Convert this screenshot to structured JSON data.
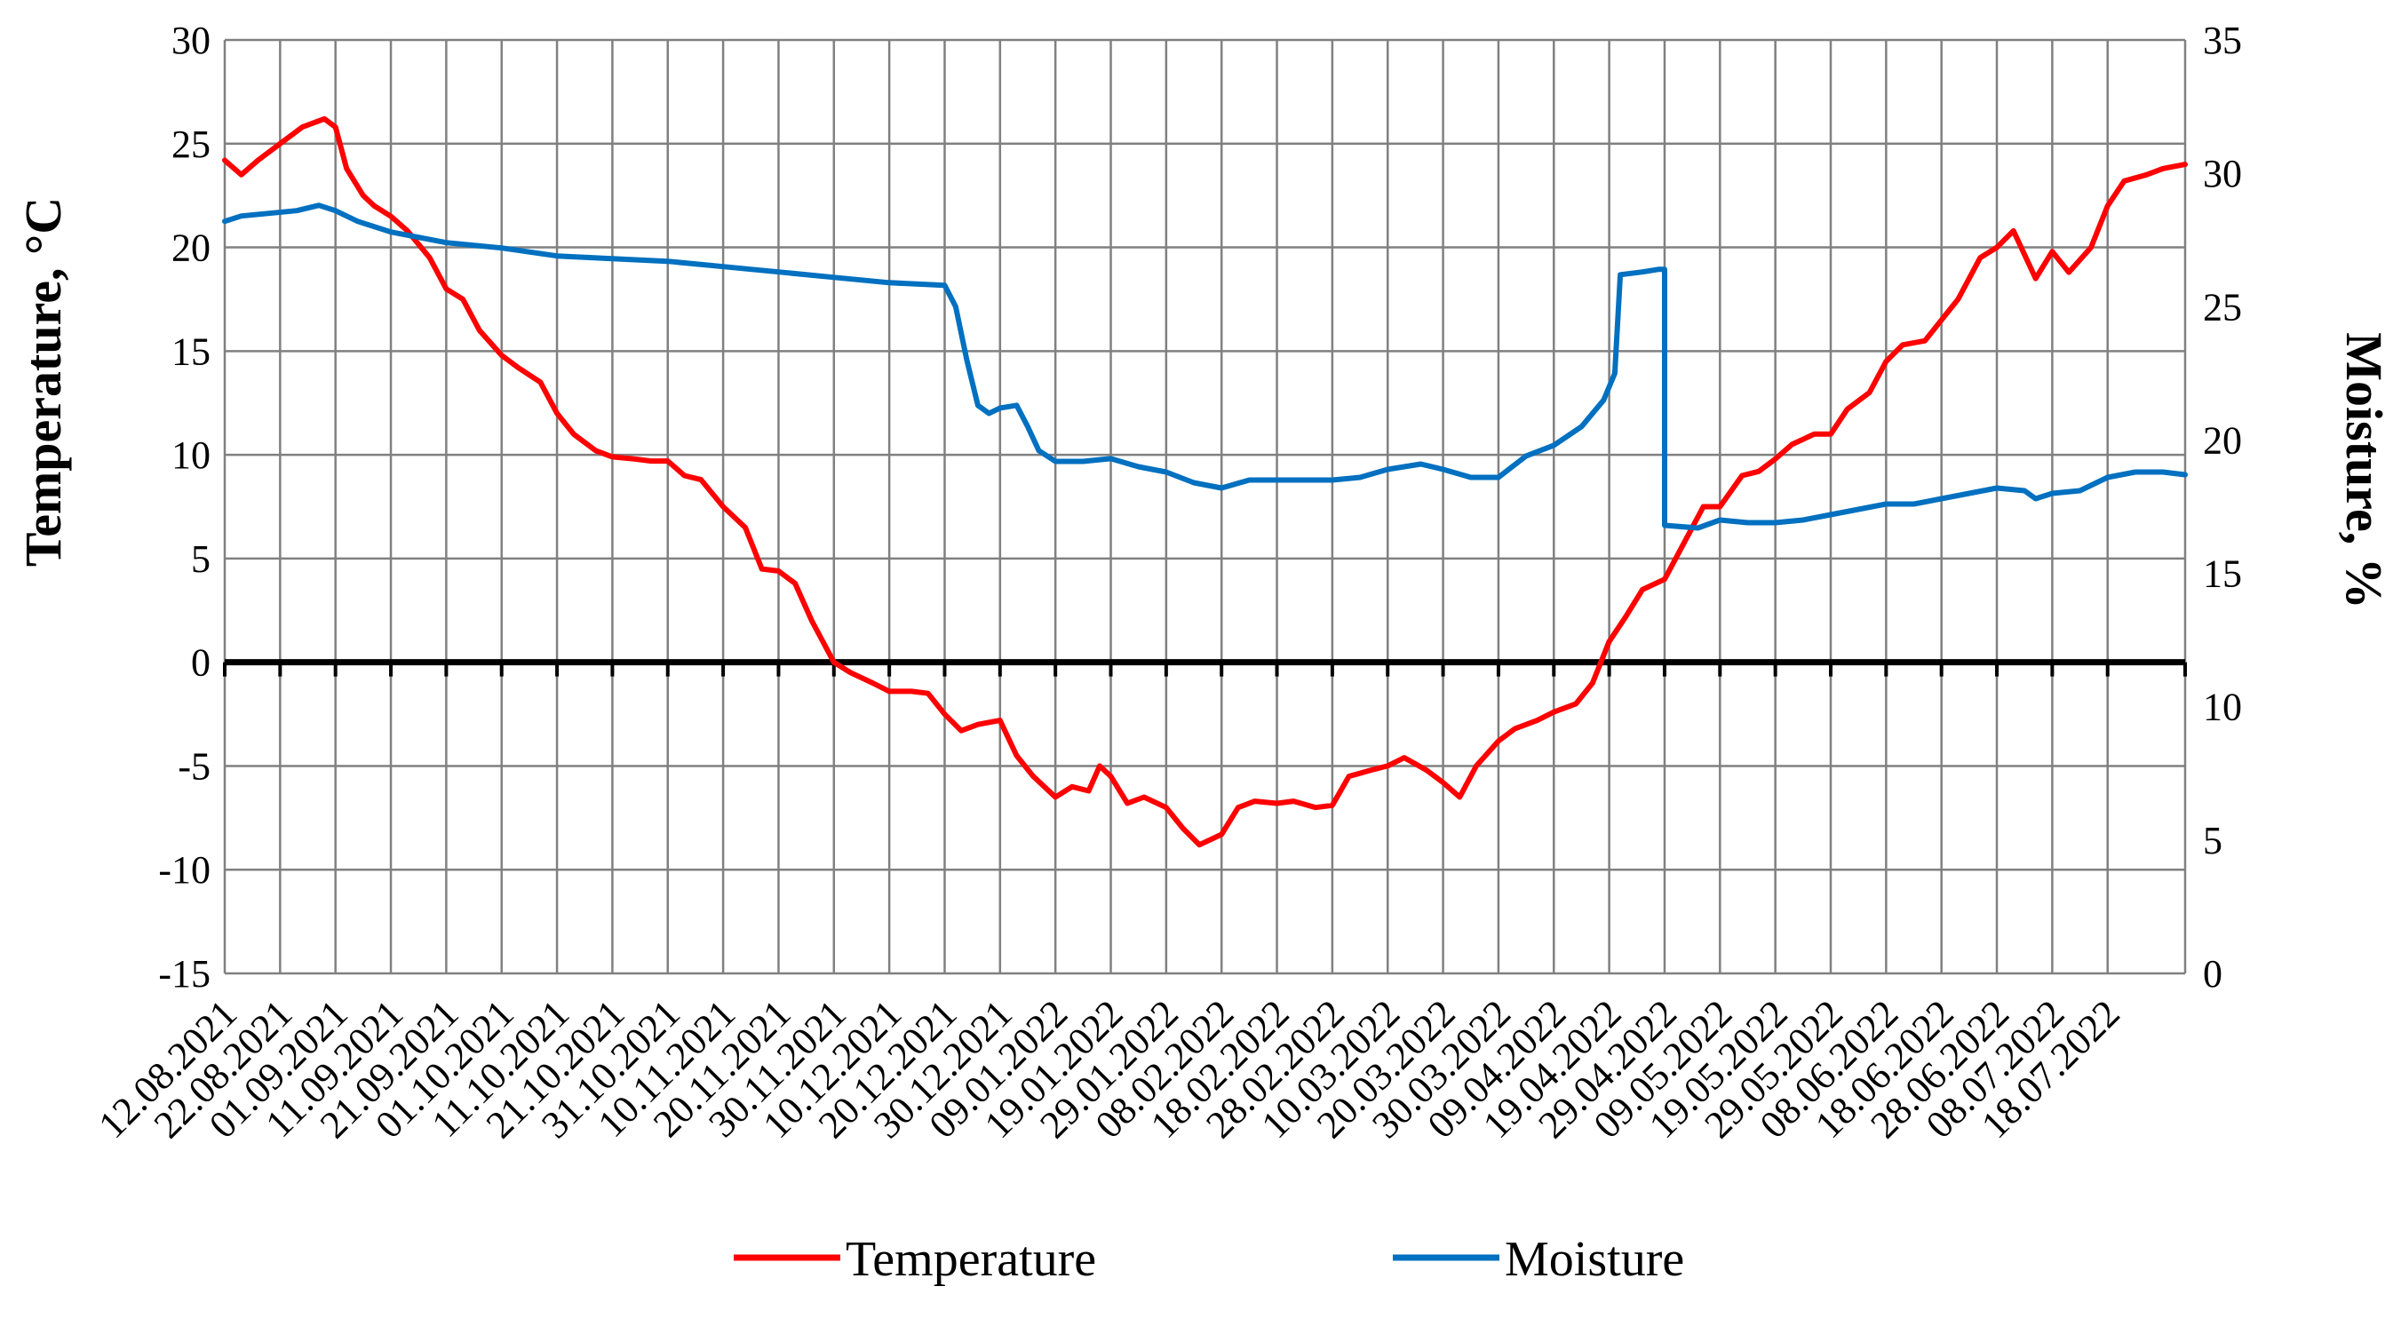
{
  "chart_data": {
    "type": "line",
    "title": "",
    "xlabel": "",
    "ylabel_left": "Temperature, °C",
    "ylabel_right": "Moisture, %",
    "ylim_left": [
      -15,
      30
    ],
    "ylim_right": [
      0,
      35
    ],
    "yticks_left": [
      30,
      25,
      20,
      15,
      10,
      5,
      0,
      -5,
      -10,
      -15
    ],
    "yticks_right": [
      35,
      30,
      25,
      20,
      15,
      10,
      5,
      0
    ],
    "x_start": "12.08.2021",
    "x_end": "01.08.2022",
    "x_tick_labels": [
      "12.08.2021",
      "22.08.2021",
      "01.09.2021",
      "11.09.2021",
      "21.09.2021",
      "01.10.2021",
      "11.10.2021",
      "21.10.2021",
      "31.10.2021",
      "10.11.2021",
      "20.11.2021",
      "30.11.2021",
      "10.12.2021",
      "20.12.2021",
      "30.12.2021",
      "09.01.2022",
      "19.01.2022",
      "29.01.2022",
      "08.02.2022",
      "18.02.2022",
      "28.02.2022",
      "10.03.2022",
      "20.03.2022",
      "30.03.2022",
      "09.04.2022",
      "19.04.2022",
      "29.04.2022",
      "09.05.2022",
      "19.05.2022",
      "29.05.2022",
      "08.06.2022",
      "18.06.2022",
      "28.06.2022",
      "08.07.2022",
      "18.07.2022"
    ],
    "grid": true,
    "legend_position": "bottom",
    "series": [
      {
        "name": "Temperature",
        "axis": "left",
        "color": "#ff0000",
        "points": [
          [
            "12.08.2021",
            24.2
          ],
          [
            "15.08.2021",
            23.5
          ],
          [
            "18.08.2021",
            24.2
          ],
          [
            "22.08.2021",
            25.0
          ],
          [
            "26.08.2021",
            25.8
          ],
          [
            "30.08.2021",
            26.2
          ],
          [
            "01.09.2021",
            25.8
          ],
          [
            "03.09.2021",
            23.8
          ],
          [
            "06.09.2021",
            22.5
          ],
          [
            "08.09.2021",
            22.0
          ],
          [
            "11.09.2021",
            21.5
          ],
          [
            "14.09.2021",
            20.8
          ],
          [
            "18.09.2021",
            19.5
          ],
          [
            "21.09.2021",
            18.0
          ],
          [
            "24.09.2021",
            17.5
          ],
          [
            "27.09.2021",
            16.0
          ],
          [
            "01.10.2021",
            14.8
          ],
          [
            "04.10.2021",
            14.2
          ],
          [
            "08.10.2021",
            13.5
          ],
          [
            "11.10.2021",
            12.0
          ],
          [
            "14.10.2021",
            11.0
          ],
          [
            "18.10.2021",
            10.2
          ],
          [
            "21.10.2021",
            9.9
          ],
          [
            "25.10.2021",
            9.8
          ],
          [
            "28.10.2021",
            9.7
          ],
          [
            "31.10.2021",
            9.7
          ],
          [
            "03.11.2021",
            9.0
          ],
          [
            "06.11.2021",
            8.8
          ],
          [
            "10.11.2021",
            7.5
          ],
          [
            "14.11.2021",
            6.5
          ],
          [
            "17.11.2021",
            4.5
          ],
          [
            "20.11.2021",
            4.4
          ],
          [
            "23.11.2021",
            3.8
          ],
          [
            "26.11.2021",
            2.0
          ],
          [
            "30.11.2021",
            0.0
          ],
          [
            "03.12.2021",
            -0.5
          ],
          [
            "07.12.2021",
            -1.0
          ],
          [
            "10.12.2021",
            -1.4
          ],
          [
            "14.12.2021",
            -1.4
          ],
          [
            "17.12.2021",
            -1.5
          ],
          [
            "20.12.2021",
            -2.5
          ],
          [
            "23.12.2021",
            -3.3
          ],
          [
            "26.12.2021",
            -3.0
          ],
          [
            "30.12.2021",
            -2.8
          ],
          [
            "02.01.2022",
            -4.5
          ],
          [
            "05.01.2022",
            -5.5
          ],
          [
            "09.01.2022",
            -6.5
          ],
          [
            "12.01.2022",
            -6.0
          ],
          [
            "15.01.2022",
            -6.2
          ],
          [
            "17.01.2022",
            -5.0
          ],
          [
            "19.01.2022",
            -5.5
          ],
          [
            "22.01.2022",
            -6.8
          ],
          [
            "25.01.2022",
            -6.5
          ],
          [
            "29.01.2022",
            -7.0
          ],
          [
            "01.02.2022",
            -8.0
          ],
          [
            "04.02.2022",
            -8.8
          ],
          [
            "08.02.2022",
            -8.3
          ],
          [
            "11.02.2022",
            -7.0
          ],
          [
            "14.02.2022",
            -6.7
          ],
          [
            "18.02.2022",
            -6.8
          ],
          [
            "21.02.2022",
            -6.7
          ],
          [
            "25.02.2022",
            -7.0
          ],
          [
            "28.02.2022",
            -6.9
          ],
          [
            "03.03.2022",
            -5.5
          ],
          [
            "07.03.2022",
            -5.2
          ],
          [
            "10.03.2022",
            -5.0
          ],
          [
            "13.03.2022",
            -4.6
          ],
          [
            "17.03.2022",
            -5.2
          ],
          [
            "20.03.2022",
            -5.8
          ],
          [
            "23.03.2022",
            -6.5
          ],
          [
            "26.03.2022",
            -5.0
          ],
          [
            "30.03.2022",
            -3.8
          ],
          [
            "02.04.2022",
            -3.2
          ],
          [
            "06.04.2022",
            -2.8
          ],
          [
            "09.04.2022",
            -2.4
          ],
          [
            "13.04.2022",
            -2.0
          ],
          [
            "16.04.2022",
            -1.0
          ],
          [
            "19.04.2022",
            1.0
          ],
          [
            "22.04.2022",
            2.2
          ],
          [
            "25.04.2022",
            3.5
          ],
          [
            "29.04.2022",
            4.0
          ],
          [
            "02.05.2022",
            5.5
          ],
          [
            "06.05.2022",
            7.5
          ],
          [
            "09.05.2022",
            7.5
          ],
          [
            "13.05.2022",
            9.0
          ],
          [
            "16.05.2022",
            9.2
          ],
          [
            "19.05.2022",
            9.8
          ],
          [
            "22.05.2022",
            10.5
          ],
          [
            "26.05.2022",
            11.0
          ],
          [
            "29.05.2022",
            11.0
          ],
          [
            "01.06.2022",
            12.2
          ],
          [
            "05.06.2022",
            13.0
          ],
          [
            "08.06.2022",
            14.5
          ],
          [
            "11.06.2022",
            15.3
          ],
          [
            "15.06.2022",
            15.5
          ],
          [
            "18.06.2022",
            16.5
          ],
          [
            "21.06.2022",
            17.5
          ],
          [
            "25.06.2022",
            19.5
          ],
          [
            "28.06.2022",
            20.0
          ],
          [
            "01.07.2022",
            20.8
          ],
          [
            "05.07.2022",
            18.5
          ],
          [
            "08.07.2022",
            19.8
          ],
          [
            "11.07.2022",
            18.8
          ],
          [
            "15.07.2022",
            20.0
          ],
          [
            "18.07.2022",
            22.0
          ],
          [
            "21.07.2022",
            23.2
          ],
          [
            "25.07.2022",
            23.5
          ],
          [
            "28.07.2022",
            23.8
          ],
          [
            "01.08.2022",
            24.0
          ]
        ]
      },
      {
        "name": "Moisture",
        "axis": "right",
        "color": "#0070c0",
        "points": [
          [
            "12.08.2021",
            28.2
          ],
          [
            "15.08.2021",
            28.4
          ],
          [
            "20.08.2021",
            28.5
          ],
          [
            "25.08.2021",
            28.6
          ],
          [
            "29.08.2021",
            28.8
          ],
          [
            "01.09.2021",
            28.6
          ],
          [
            "05.09.2021",
            28.2
          ],
          [
            "11.09.2021",
            27.8
          ],
          [
            "21.09.2021",
            27.4
          ],
          [
            "01.10.2021",
            27.2
          ],
          [
            "11.10.2021",
            26.9
          ],
          [
            "21.10.2021",
            26.8
          ],
          [
            "31.10.2021",
            26.7
          ],
          [
            "10.11.2021",
            26.5
          ],
          [
            "20.11.2021",
            26.3
          ],
          [
            "30.11.2021",
            26.1
          ],
          [
            "10.12.2021",
            25.9
          ],
          [
            "20.12.2021",
            25.8
          ],
          [
            "22.12.2021",
            25.0
          ],
          [
            "24.12.2021",
            23.0
          ],
          [
            "26.12.2021",
            21.3
          ],
          [
            "28.12.2021",
            21.0
          ],
          [
            "30.12.2021",
            21.2
          ],
          [
            "02.01.2022",
            21.3
          ],
          [
            "04.01.2022",
            20.5
          ],
          [
            "06.01.2022",
            19.6
          ],
          [
            "09.01.2022",
            19.2
          ],
          [
            "14.01.2022",
            19.2
          ],
          [
            "19.01.2022",
            19.3
          ],
          [
            "24.01.2022",
            19.0
          ],
          [
            "29.01.2022",
            18.8
          ],
          [
            "03.02.2022",
            18.4
          ],
          [
            "08.02.2022",
            18.2
          ],
          [
            "13.02.2022",
            18.5
          ],
          [
            "18.02.2022",
            18.5
          ],
          [
            "28.02.2022",
            18.5
          ],
          [
            "05.03.2022",
            18.6
          ],
          [
            "10.03.2022",
            18.9
          ],
          [
            "16.03.2022",
            19.1
          ],
          [
            "20.03.2022",
            18.9
          ],
          [
            "25.03.2022",
            18.6
          ],
          [
            "30.03.2022",
            18.6
          ],
          [
            "04.04.2022",
            19.4
          ],
          [
            "09.04.2022",
            19.8
          ],
          [
            "14.04.2022",
            20.5
          ],
          [
            "18.04.2022",
            21.5
          ],
          [
            "20.04.2022",
            22.5
          ],
          [
            "21.04.2022",
            26.2
          ],
          [
            "25.04.2022",
            26.3
          ],
          [
            "28.04.2022",
            26.4
          ],
          [
            "29.04.2022",
            26.4
          ],
          [
            "29.04.2022",
            16.8
          ],
          [
            "05.05.2022",
            16.7
          ],
          [
            "09.05.2022",
            17.0
          ],
          [
            "14.05.2022",
            16.9
          ],
          [
            "19.05.2022",
            16.9
          ],
          [
            "24.05.2022",
            17.0
          ],
          [
            "29.05.2022",
            17.2
          ],
          [
            "03.06.2022",
            17.4
          ],
          [
            "08.06.2022",
            17.6
          ],
          [
            "13.06.2022",
            17.6
          ],
          [
            "18.06.2022",
            17.8
          ],
          [
            "23.06.2022",
            18.0
          ],
          [
            "28.06.2022",
            18.2
          ],
          [
            "03.07.2022",
            18.1
          ],
          [
            "05.07.2022",
            17.8
          ],
          [
            "08.07.2022",
            18.0
          ],
          [
            "13.07.2022",
            18.1
          ],
          [
            "18.07.2022",
            18.6
          ],
          [
            "23.07.2022",
            18.8
          ],
          [
            "28.07.2022",
            18.8
          ],
          [
            "01.08.2022",
            18.7
          ]
        ]
      }
    ]
  }
}
